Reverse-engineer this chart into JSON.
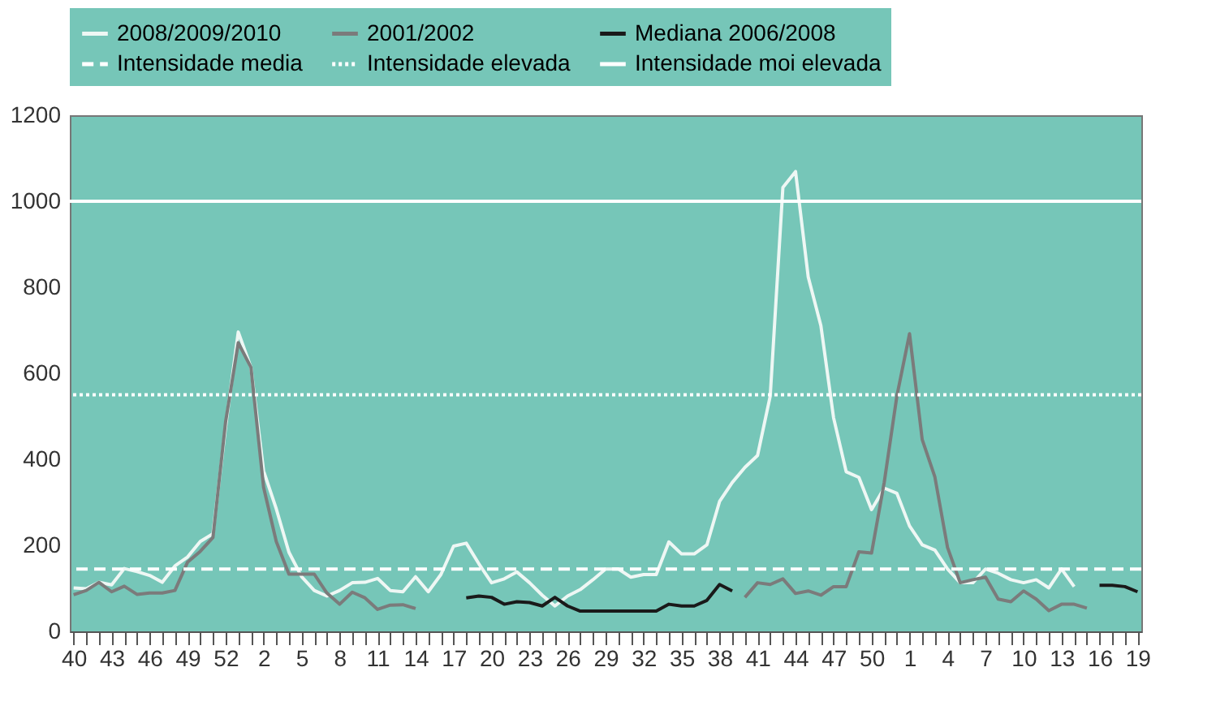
{
  "chart_data": {
    "type": "line",
    "categories": [
      "40",
      null,
      null,
      "43",
      null,
      null,
      "46",
      null,
      null,
      "49",
      null,
      null,
      "52",
      null,
      null,
      "2",
      null,
      null,
      "5",
      null,
      null,
      "8",
      null,
      null,
      "11",
      null,
      null,
      "14",
      null,
      null,
      "17",
      null,
      null,
      "20",
      null,
      null,
      "23",
      null,
      null,
      "26",
      null,
      null,
      "29",
      null,
      null,
      "32",
      null,
      null,
      "35",
      null,
      null,
      "38",
      null,
      null,
      "41",
      null,
      null,
      "44",
      null,
      null,
      "47",
      null,
      null,
      "50",
      null,
      null,
      "1",
      null,
      null,
      "4",
      null,
      null,
      "7",
      null,
      null,
      "10",
      null,
      null,
      "13",
      null,
      null,
      "16",
      null,
      null,
      "19"
    ],
    "series": [
      {
        "name": "2008/2009/2010",
        "color": "#eef7f4",
        "values": [
          101,
          99,
          114,
          108,
          146,
          139,
          130,
          114,
          152,
          173,
          209,
          227,
          475,
          696,
          614,
          373,
          285,
          184,
          127,
          95,
          82,
          95,
          113,
          114,
          123,
          95,
          92,
          127,
          92,
          132,
          198,
          205,
          157,
          113,
          122,
          138,
          113,
          84,
          59,
          82,
          97,
          120,
          145,
          145,
          126,
          132,
          132,
          208,
          180,
          180,
          201,
          302,
          346,
          381,
          409,
          547,
          1032,
          1069,
          824,
          711,
          497,
          371,
          358,
          283,
          333,
          321,
          245,
          201,
          189,
          145,
          113,
          113,
          145,
          135,
          120,
          113,
          120,
          101,
          145,
          104,
          null,
          null,
          null,
          null,
          null
        ]
      },
      {
        "name": "2001/2002",
        "color": "#7b7b7b",
        "values": [
          85,
          95,
          114,
          92,
          105,
          86,
          89,
          89,
          95,
          161,
          186,
          218,
          487,
          671,
          614,
          335,
          209,
          133,
          133,
          133,
          89,
          63,
          91,
          78,
          51,
          61,
          62,
          53,
          null,
          null,
          null,
          null,
          null,
          null,
          null,
          null,
          null,
          null,
          null,
          null,
          null,
          null,
          null,
          null,
          null,
          null,
          null,
          null,
          null,
          null,
          null,
          null,
          null,
          79,
          113,
          109,
          122,
          88,
          94,
          84,
          104,
          104,
          185,
          182,
          346,
          547,
          692,
          446,
          359,
          195,
          113,
          120,
          126,
          75,
          69,
          94,
          75,
          48,
          63,
          63,
          54,
          null,
          null,
          null,
          null
        ]
      },
      {
        "name": "Mediana 2006/2008",
        "color": "#1a1a1a",
        "values": [
          null,
          null,
          null,
          null,
          null,
          null,
          null,
          null,
          null,
          null,
          null,
          null,
          null,
          null,
          null,
          null,
          null,
          null,
          null,
          null,
          null,
          null,
          null,
          null,
          null,
          null,
          null,
          null,
          null,
          null,
          null,
          78,
          82,
          79,
          63,
          69,
          67,
          59,
          79,
          59,
          47,
          47,
          47,
          47,
          47,
          47,
          47,
          63,
          59,
          59,
          72,
          109,
          94,
          null,
          null,
          null,
          null,
          null,
          null,
          null,
          null,
          null,
          null,
          null,
          null,
          null,
          null,
          null,
          null,
          null,
          null,
          null,
          null,
          null,
          null,
          null,
          null,
          null,
          null,
          null,
          null,
          107,
          107,
          104,
          92
        ]
      }
    ],
    "ref_lines": [
      {
        "axis": "y",
        "value": 145,
        "label": "Intensidade media",
        "color": "#ffffff",
        "line_style": "dashed"
      },
      {
        "axis": "y",
        "value": 550,
        "label": "Intensidade elevada",
        "color": "#ffffff",
        "line_style": "dotted"
      },
      {
        "axis": "y",
        "value": 1000,
        "label": "Intensidade moi elevada",
        "color": "#ffffff",
        "line_style": "solid"
      }
    ],
    "ylim": [
      0,
      1200
    ],
    "yticks": [
      0,
      200,
      400,
      600,
      800,
      1000,
      1200
    ],
    "grid": false,
    "legend": "top",
    "line_style": "solid",
    "marker": "none"
  }
}
